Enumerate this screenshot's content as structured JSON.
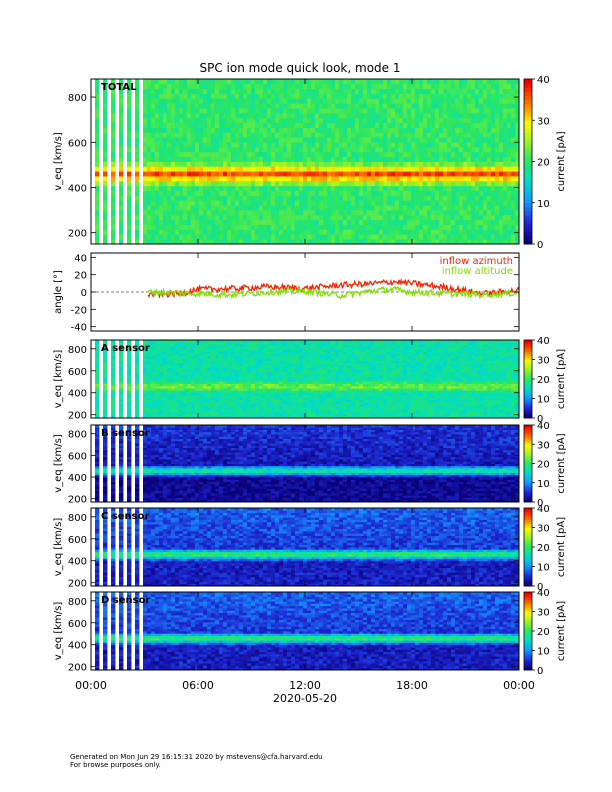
{
  "page": {
    "title": "SPC ion mode quick look, mode 1",
    "footer_line1": "Generated on Mon Jun 29 16:15:31 2020 by mstevens@cfa.harvard.edu",
    "footer_line2": "For browse purposes only."
  },
  "chart_data": [
    {
      "type": "heatmap",
      "name": "total",
      "label": "TOTAL",
      "ylabel": "v_eq [km/s]",
      "yticks": [
        200,
        400,
        600,
        800
      ],
      "ylim": [
        150,
        880
      ],
      "colorbar": {
        "label": "current [pA]",
        "ticks": [
          0,
          10,
          20,
          30,
          40
        ],
        "range": [
          0,
          40
        ]
      },
      "band_center_kms": 460,
      "data_gap_until_hour": 3.2
    },
    {
      "type": "line",
      "name": "angle",
      "ylabel": "angle [°]",
      "yticks": [
        -40,
        -20,
        0,
        20,
        40
      ],
      "ylim": [
        -45,
        45
      ],
      "series": [
        {
          "name": "inflow azimuth",
          "color": "#ff2000",
          "x": [
            3.2,
            5,
            6,
            8,
            10,
            12,
            14,
            16,
            17,
            18,
            20,
            22,
            24
          ],
          "y": [
            -3,
            -2,
            3,
            4,
            6,
            4,
            8,
            10,
            12,
            10,
            5,
            -2,
            2
          ]
        },
        {
          "name": "inflow altitude",
          "color": "#80e000",
          "x": [
            3.2,
            5,
            6,
            8,
            10,
            12,
            14,
            16,
            17,
            18,
            20,
            22,
            24
          ],
          "y": [
            0,
            -1,
            -2,
            -3,
            0,
            1,
            -4,
            2,
            3,
            0,
            -2,
            -3,
            -1
          ]
        }
      ]
    },
    {
      "type": "heatmap",
      "name": "sensor-a",
      "label": "A sensor",
      "ylabel": "v_eq [km/s]",
      "yticks": [
        200,
        400,
        600,
        800
      ],
      "ylim": [
        170,
        880
      ],
      "colorbar": {
        "label": "current [pA]",
        "ticks": [
          0,
          10,
          20,
          30,
          40
        ],
        "range": [
          0,
          40
        ]
      },
      "band_center_kms": 460
    },
    {
      "type": "heatmap",
      "name": "sensor-b",
      "label": "B sensor",
      "ylabel": "v_eq [km/s]",
      "yticks": [
        200,
        400,
        600,
        800
      ],
      "ylim": [
        170,
        880
      ],
      "colorbar": {
        "label": "current [pA]",
        "ticks": [
          0,
          10,
          20,
          30,
          40
        ],
        "range": [
          0,
          40
        ]
      },
      "band_center_kms": 460
    },
    {
      "type": "heatmap",
      "name": "sensor-c",
      "label": "C sensor",
      "ylabel": "v_eq [km/s]",
      "yticks": [
        200,
        400,
        600,
        800
      ],
      "ylim": [
        170,
        880
      ],
      "colorbar": {
        "label": "current [pA]",
        "ticks": [
          0,
          10,
          20,
          30,
          40
        ],
        "range": [
          0,
          40
        ]
      },
      "band_center_kms": 460
    },
    {
      "type": "heatmap",
      "name": "sensor-d",
      "label": "D sensor",
      "ylabel": "v_eq [km/s]",
      "yticks": [
        200,
        400,
        600,
        800
      ],
      "ylim": [
        170,
        880
      ],
      "colorbar": {
        "label": "current [pA]",
        "ticks": [
          0,
          10,
          20,
          30,
          40
        ],
        "range": [
          0,
          40
        ]
      },
      "band_center_kms": 460
    }
  ],
  "x_axis": {
    "ticks": [
      "00:00",
      "06:00",
      "12:00",
      "18:00",
      "00:00"
    ],
    "tick_hours": [
      0,
      6,
      12,
      18,
      24
    ],
    "date_label": "2020-05-20",
    "range_hours": [
      0,
      24
    ]
  }
}
